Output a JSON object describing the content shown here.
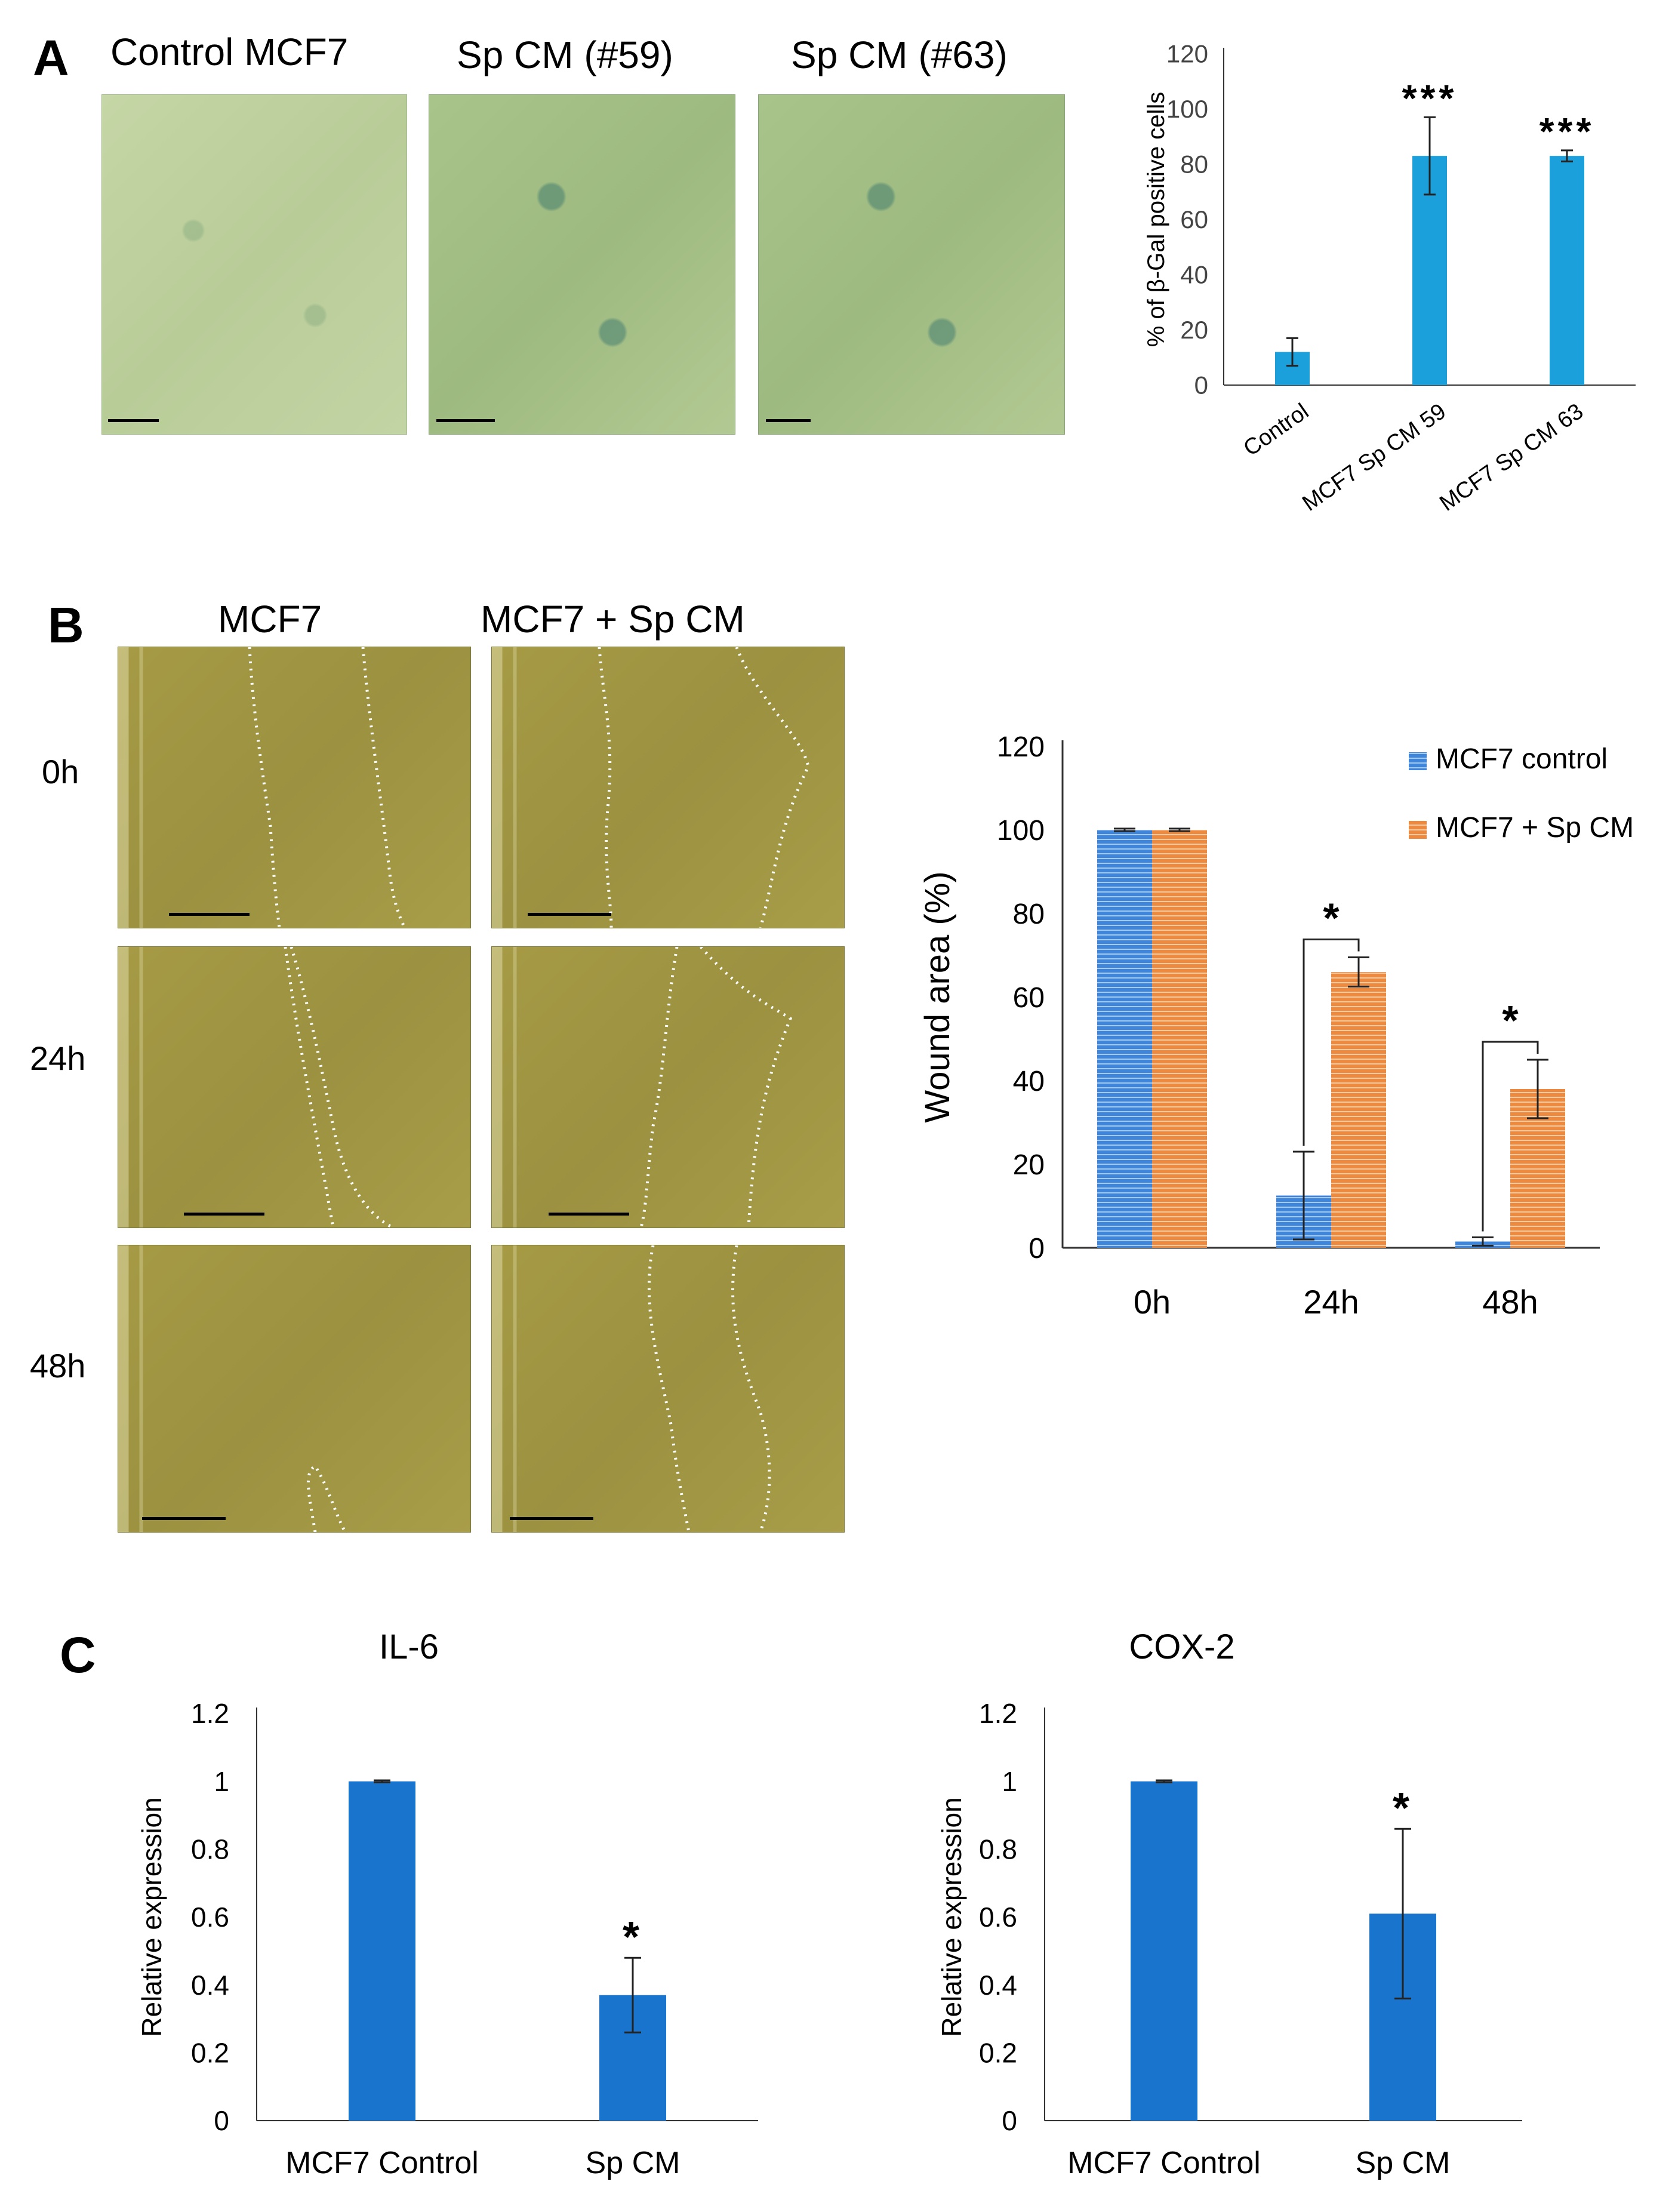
{
  "panels": {
    "a": {
      "letter": "A",
      "image_labels": [
        "Control MCF7",
        "Sp CM (#59)",
        "Sp CM (#63)"
      ]
    },
    "b": {
      "letter": "B",
      "column_labels": [
        "MCF7",
        "MCF7 + Sp CM"
      ],
      "row_labels": [
        "0h",
        "24h",
        "48h"
      ]
    },
    "c": {
      "letter": "C"
    }
  },
  "chart_data": [
    {
      "id": "beta-gal",
      "type": "bar",
      "categories": [
        "Control",
        "MCF7 Sp CM 59",
        "MCF7 Sp CM 63"
      ],
      "values": [
        12,
        83,
        83
      ],
      "errors": [
        5,
        14,
        2
      ],
      "significance": [
        "",
        "***",
        "***"
      ],
      "title": "",
      "xlabel": "",
      "ylabel": "% of β-Gal positive cells",
      "ylim": [
        0,
        120
      ],
      "yticks": [
        "0",
        "20",
        "40",
        "60",
        "80",
        "100",
        "120"
      ],
      "color": "#1ba0db",
      "grid": false
    },
    {
      "id": "wound",
      "type": "bar",
      "categories": [
        "0h",
        "24h",
        "48h"
      ],
      "series": [
        {
          "name": "MCF7 control",
          "values": [
            100,
            12.5,
            1.5
          ],
          "errors": [
            0.3,
            10.5,
            1
          ],
          "color": "#3d86dc"
        },
        {
          "name": "MCF7 + Sp CM",
          "values": [
            100,
            66,
            38
          ],
          "errors": [
            0.3,
            3.5,
            7
          ],
          "color": "#ee8a3e"
        }
      ],
      "significance": [
        "",
        "*",
        "*"
      ],
      "title": "",
      "xlabel": "",
      "ylabel": "Wound area (%)",
      "ylim": [
        0,
        120
      ],
      "yticks": [
        "0",
        "20",
        "40",
        "60",
        "80",
        "100",
        "120"
      ],
      "legend": "top-right",
      "grid": false
    },
    {
      "id": "il6",
      "type": "bar",
      "categories": [
        "MCF7 Control",
        "Sp CM"
      ],
      "values": [
        1,
        0.37
      ],
      "errors": [
        0.003,
        0.11
      ],
      "significance": [
        "",
        "*"
      ],
      "title": "IL-6",
      "xlabel": "",
      "ylabel": "Relative expression",
      "ylim": [
        0,
        1.2
      ],
      "yticks": [
        "0",
        "0.2",
        "0.4",
        "0.6",
        "0.8",
        "1",
        "1.2"
      ],
      "color": "#1874cd",
      "grid": false
    },
    {
      "id": "cox2",
      "type": "bar",
      "categories": [
        "MCF7 Control",
        "Sp CM"
      ],
      "values": [
        1,
        0.61
      ],
      "errors": [
        0.003,
        0.25
      ],
      "significance": [
        "",
        "*"
      ],
      "title": "COX-2",
      "xlabel": "",
      "ylabel": "Relative expression",
      "ylim": [
        0,
        1.2
      ],
      "yticks": [
        "0",
        "0.2",
        "0.4",
        "0.6",
        "0.8",
        "1",
        "1.2"
      ],
      "color": "#1874cd",
      "grid": false
    }
  ]
}
